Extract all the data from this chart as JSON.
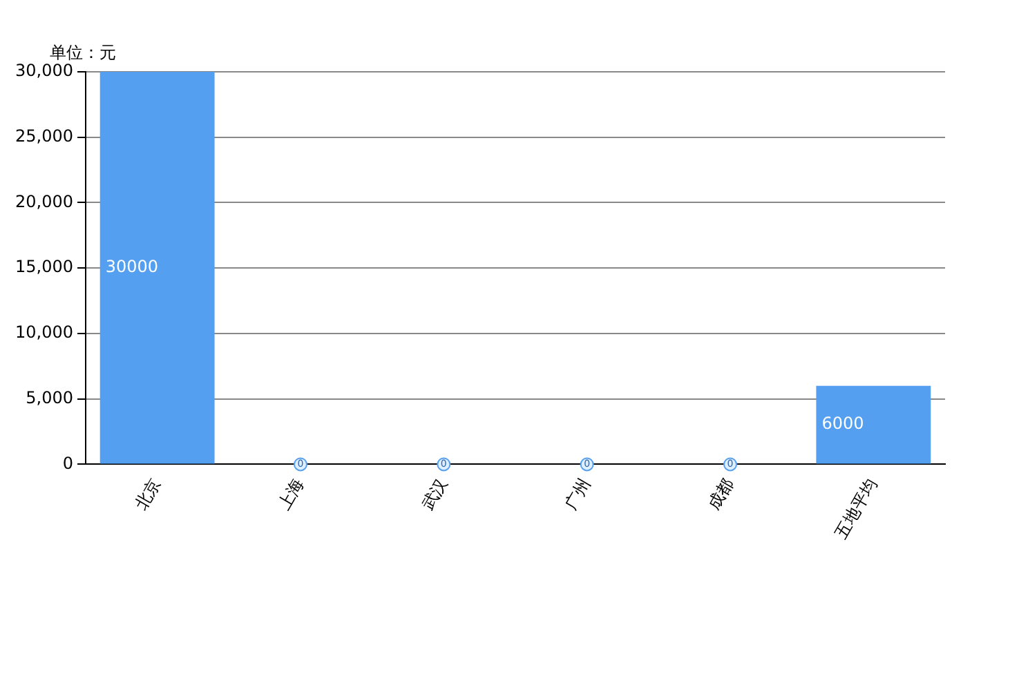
{
  "chart_data": {
    "type": "bar",
    "ylabel": "单位：元",
    "categories": [
      "北京",
      "上海",
      "武汉",
      "广州",
      "成都",
      "五地平均"
    ],
    "series": [
      {
        "color": "#559ff0",
        "values": [
          30000,
          0,
          0,
          0,
          0,
          6000
        ]
      }
    ],
    "ylim": [
      0,
      30000
    ],
    "yticks": [
      {
        "value": 0,
        "label": "0"
      },
      {
        "value": 5000,
        "label": "5,000"
      },
      {
        "value": 10000,
        "label": "10,000"
      },
      {
        "value": 15000,
        "label": "15,000"
      },
      {
        "value": 20000,
        "label": "20,000"
      },
      {
        "value": 25000,
        "label": "25,000"
      },
      {
        "value": 30000,
        "label": "30,000"
      }
    ],
    "grid": "y",
    "data_labels": true,
    "legend": false
  }
}
